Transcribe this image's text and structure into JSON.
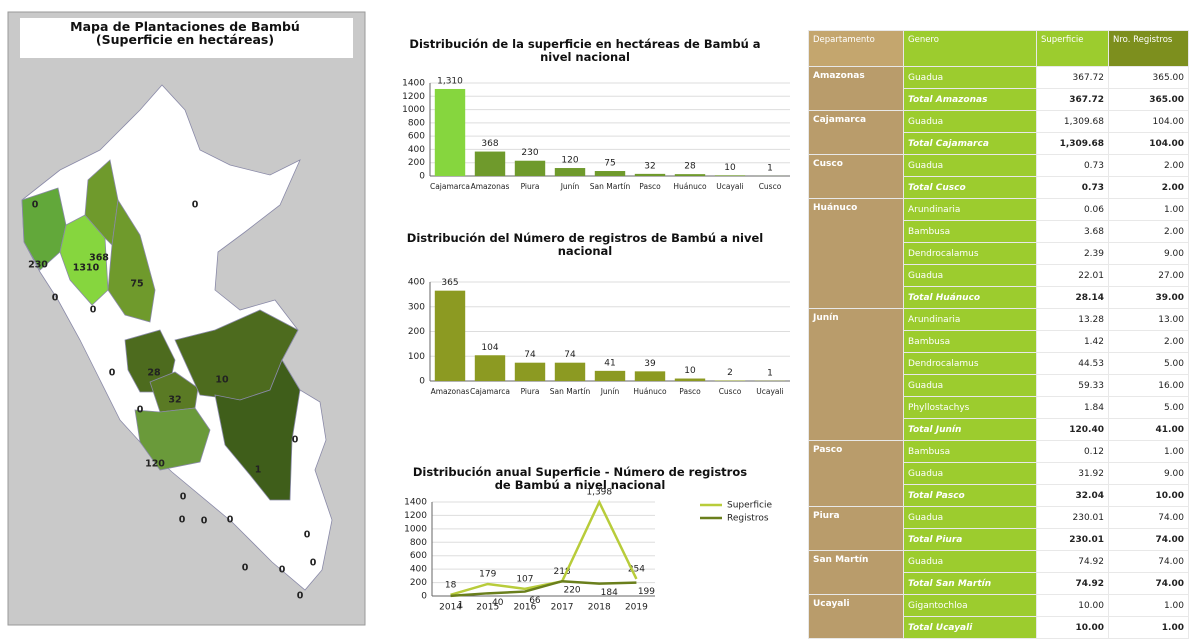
{
  "map": {
    "title": "Mapa de Plantaciones de Bambú (Superficie en hectáreas)",
    "labels": [
      0,
      230,
      368,
      0,
      1310,
      0,
      75,
      0,
      0,
      28,
      10,
      32,
      0,
      120,
      0,
      0,
      0,
      0,
      0,
      1,
      0,
      0,
      0,
      0,
      0
    ]
  },
  "chart_data": [
    {
      "type": "bar",
      "title": "Distribución de la superficie en hectáreas de Bambú a nivel nacional",
      "categories": [
        "Cajamarca",
        "Amazonas",
        "Piura",
        "Junín",
        "San Martín",
        "Pasco",
        "Huánuco",
        "Ucayali",
        "Cusco"
      ],
      "values": [
        1310,
        368,
        230,
        120,
        75,
        32,
        28,
        10,
        1
      ],
      "value_labels": [
        "1,310",
        "368",
        "230",
        "120",
        "75",
        "32",
        "28",
        "10",
        "1"
      ],
      "colors": [
        "#86d63e",
        "#6f9a2c",
        "#6f9a2c",
        "#6f9a2c",
        "#6f9a2c",
        "#6f9a2c",
        "#6f9a2c",
        "#6f9a2c",
        "#6f9a2c"
      ],
      "ylim": [
        0,
        1400
      ],
      "yticks": [
        0,
        200,
        400,
        600,
        800,
        1000,
        1200,
        1400
      ],
      "grid": true
    },
    {
      "type": "bar",
      "title": "Distribución del Número de registros de Bambú a nivel nacional",
      "categories": [
        "Amazonas",
        "Cajamarca",
        "Piura",
        "San Martín",
        "Junín",
        "Huánuco",
        "Pasco",
        "Cusco",
        "Ucayali"
      ],
      "values": [
        365,
        104,
        74,
        74,
        41,
        39,
        10,
        2,
        1
      ],
      "color": "#8c9a22",
      "ylim": [
        0,
        400
      ],
      "yticks": [
        0,
        100,
        200,
        300,
        400
      ],
      "grid": true
    },
    {
      "type": "line",
      "title": "Distribución anual Superficie - Número de registros de Bambú a nivel nacional",
      "categories": [
        "2014",
        "2015",
        "2016",
        "2017",
        "2018",
        "2019"
      ],
      "series": [
        {
          "name": "Superficie",
          "color": "#b8cc3a",
          "values": [
            18,
            179,
            107,
            218,
            1398,
            254
          ],
          "value_labels": [
            "18",
            "179",
            "107",
            "218",
            "1,398",
            "254"
          ]
        },
        {
          "name": "Registros",
          "color": "#6a7f1c",
          "values": [
            1,
            40,
            66,
            220,
            184,
            199
          ]
        }
      ],
      "ylim": [
        0,
        1400
      ],
      "yticks": [
        0,
        200,
        400,
        600,
        800,
        1000,
        1200,
        1400
      ],
      "grid": true,
      "legend": "right"
    }
  ],
  "table": {
    "columns": [
      "Departamento",
      "Genero",
      "Superficie",
      "Nro. Registros"
    ],
    "groups": [
      {
        "department": "Amazonas",
        "rows": [
          [
            "Guadua",
            "367.72",
            "365.00"
          ],
          [
            "Total Amazonas",
            "367.72",
            "365.00"
          ]
        ]
      },
      {
        "department": "Cajamarca",
        "rows": [
          [
            "Guadua",
            "1,309.68",
            "104.00"
          ],
          [
            "Total Cajamarca",
            "1,309.68",
            "104.00"
          ]
        ]
      },
      {
        "department": "Cusco",
        "rows": [
          [
            "Guadua",
            "0.73",
            "2.00"
          ],
          [
            "Total Cusco",
            "0.73",
            "2.00"
          ]
        ]
      },
      {
        "department": "Huánuco",
        "rows": [
          [
            "Arundinaria",
            "0.06",
            "1.00"
          ],
          [
            "Bambusa",
            "3.68",
            "2.00"
          ],
          [
            "Dendrocalamus",
            "2.39",
            "9.00"
          ],
          [
            "Guadua",
            "22.01",
            "27.00"
          ],
          [
            "Total Huánuco",
            "28.14",
            "39.00"
          ]
        ]
      },
      {
        "department": "Junín",
        "rows": [
          [
            "Arundinaria",
            "13.28",
            "13.00"
          ],
          [
            "Bambusa",
            "1.42",
            "2.00"
          ],
          [
            "Dendrocalamus",
            "44.53",
            "5.00"
          ],
          [
            "Guadua",
            "59.33",
            "16.00"
          ],
          [
            "Phyllostachys",
            "1.84",
            "5.00"
          ],
          [
            "Total Junín",
            "120.40",
            "41.00"
          ]
        ]
      },
      {
        "department": "Pasco",
        "rows": [
          [
            "Bambusa",
            "0.12",
            "1.00"
          ],
          [
            "Guadua",
            "31.92",
            "9.00"
          ],
          [
            "Total Pasco",
            "32.04",
            "10.00"
          ]
        ]
      },
      {
        "department": "Piura",
        "rows": [
          [
            "Guadua",
            "230.01",
            "74.00"
          ],
          [
            "Total Piura",
            "230.01",
            "74.00"
          ]
        ]
      },
      {
        "department": "San Martín",
        "rows": [
          [
            "Guadua",
            "74.92",
            "74.00"
          ],
          [
            "Total San Martín",
            "74.92",
            "74.00"
          ]
        ]
      },
      {
        "department": "Ucayali",
        "rows": [
          [
            "Gigantochloa",
            "10.00",
            "1.00"
          ],
          [
            "Total Ucayali",
            "10.00",
            "1.00"
          ]
        ]
      }
    ]
  }
}
